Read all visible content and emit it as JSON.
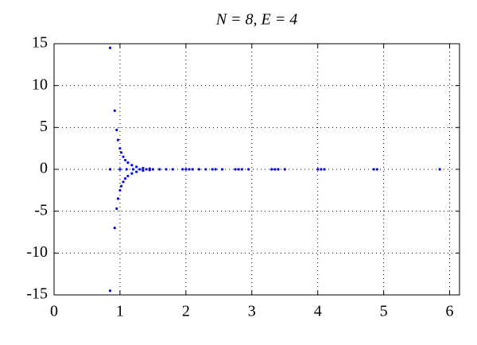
{
  "chart_data": {
    "type": "scatter",
    "title": "N = 8, E = 4",
    "xlim": [
      0,
      6.15
    ],
    "ylim": [
      -15,
      15
    ],
    "xticks": [
      0,
      1,
      2,
      3,
      4,
      5,
      6
    ],
    "yticks": [
      -15,
      -10,
      -5,
      0,
      5,
      10,
      15
    ],
    "grid": true,
    "series": [
      {
        "color": "#0000ff",
        "x": [
          0.85,
          0.85,
          0.92,
          0.92,
          0.95,
          0.95,
          0.97,
          0.97,
          1.0,
          1.0,
          1.02,
          1.02,
          1.05,
          1.05,
          1.08,
          1.08,
          1.12,
          1.12,
          1.18,
          1.18,
          1.25,
          1.25,
          1.35,
          1.35,
          1.45,
          1.45,
          0.85,
          1.0,
          1.1,
          1.2,
          1.3,
          1.4,
          1.5,
          1.6,
          1.7,
          1.8,
          1.95,
          2.0,
          2.05,
          2.1,
          2.2,
          2.3,
          2.4,
          2.45,
          2.55,
          2.75,
          2.8,
          2.85,
          2.95,
          3.3,
          3.35,
          3.4,
          3.5,
          4.0,
          4.05,
          4.1,
          4.85,
          4.9,
          5.85
        ],
        "y": [
          14.5,
          -14.5,
          7,
          -7,
          4.7,
          -4.7,
          3.5,
          -3.5,
          2.5,
          -2.5,
          2,
          -2,
          1.5,
          -1.5,
          1.1,
          -1.1,
          0.8,
          -0.8,
          0.5,
          -0.5,
          0.3,
          -0.3,
          0.15,
          -0.15,
          0.08,
          -0.08,
          0,
          0,
          0,
          0,
          0,
          0,
          0,
          0,
          0,
          0,
          0,
          0,
          0,
          0,
          0,
          0,
          0,
          0,
          0,
          0,
          0,
          0,
          0,
          0,
          0,
          0,
          0,
          0,
          0,
          0,
          0,
          0,
          0
        ]
      }
    ]
  }
}
